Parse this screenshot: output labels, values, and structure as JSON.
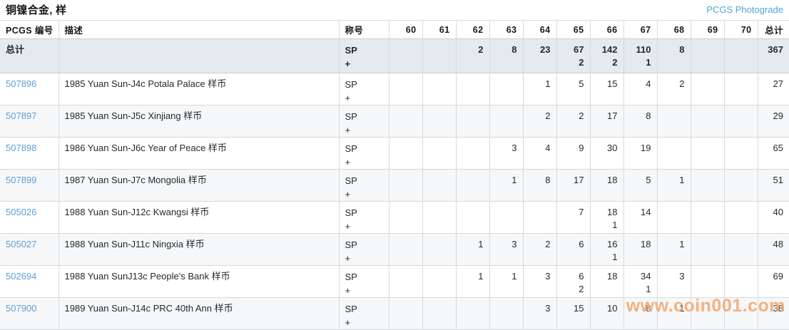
{
  "page": {
    "title": "铜镍合金, 样",
    "photograde_link": "PCGS Photograde",
    "watermark": "www.coin001.com"
  },
  "colors": {
    "link_blue": "#51a4d7",
    "id_link_blue": "#5f9fd4",
    "totals_row_bg": "#e5eaee",
    "alt_row_bg": "#f6f7f8",
    "border": "#d6dadd",
    "watermark_orange": "#f4a76f"
  },
  "table": {
    "columns": [
      "PCGS 编号",
      "描述",
      "称号",
      "60",
      "61",
      "62",
      "63",
      "64",
      "65",
      "66",
      "67",
      "68",
      "69",
      "70",
      "总计"
    ],
    "grade_keys": [
      "60",
      "61",
      "62",
      "63",
      "64",
      "65",
      "66",
      "67",
      "68",
      "69",
      "70"
    ],
    "totals": {
      "label": "总计",
      "designation": [
        "SP",
        "+"
      ],
      "grades": [
        null,
        null,
        [
          "2"
        ],
        [
          "8"
        ],
        [
          "23"
        ],
        [
          "67",
          "2"
        ],
        [
          "142",
          "2"
        ],
        [
          "110",
          "1"
        ],
        [
          "8"
        ],
        null,
        null
      ],
      "total": "367"
    },
    "rows": [
      {
        "id": "507896",
        "desc": "1985 Yuan Sun-J4c Potala Palace 样币",
        "designation": [
          "SP",
          "+"
        ],
        "grades": [
          null,
          null,
          null,
          null,
          [
            "1"
          ],
          [
            "5"
          ],
          [
            "15"
          ],
          [
            "4"
          ],
          [
            "2"
          ],
          null,
          null
        ],
        "total": "27"
      },
      {
        "id": "507897",
        "desc": "1985 Yuan Sun-J5c Xinjiang 样币",
        "designation": [
          "SP",
          "+"
        ],
        "grades": [
          null,
          null,
          null,
          null,
          [
            "2"
          ],
          [
            "2"
          ],
          [
            "17"
          ],
          [
            "8"
          ],
          null,
          null,
          null
        ],
        "total": "29"
      },
      {
        "id": "507898",
        "desc": "1986 Yuan Sun-J6c Year of Peace 样币",
        "designation": [
          "SP",
          "+"
        ],
        "grades": [
          null,
          null,
          null,
          [
            "3"
          ],
          [
            "4"
          ],
          [
            "9"
          ],
          [
            "30"
          ],
          [
            "19"
          ],
          null,
          null,
          null
        ],
        "total": "65"
      },
      {
        "id": "507899",
        "desc": "1987 Yuan Sun-J7c Mongolia 样币",
        "designation": [
          "SP",
          "+"
        ],
        "grades": [
          null,
          null,
          null,
          [
            "1"
          ],
          [
            "8"
          ],
          [
            "17"
          ],
          [
            "18"
          ],
          [
            "5"
          ],
          [
            "1"
          ],
          null,
          null
        ],
        "total": "51"
      },
      {
        "id": "505026",
        "desc": "1988 Yuan Sun-J12c Kwangsi 样币",
        "designation": [
          "SP",
          "+"
        ],
        "grades": [
          null,
          null,
          null,
          null,
          null,
          [
            "7"
          ],
          [
            "18",
            "1"
          ],
          [
            "14"
          ],
          null,
          null,
          null
        ],
        "total": "40"
      },
      {
        "id": "505027",
        "desc": "1988 Yuan Sun-J11c Ningxia 样币",
        "designation": [
          "SP",
          "+"
        ],
        "grades": [
          null,
          null,
          [
            "1"
          ],
          [
            "3"
          ],
          [
            "2"
          ],
          [
            "6"
          ],
          [
            "16",
            "1"
          ],
          [
            "18"
          ],
          [
            "1"
          ],
          null,
          null
        ],
        "total": "48"
      },
      {
        "id": "502694",
        "desc": "1988 Yuan SunJ13c People's Bank 样币",
        "designation": [
          "SP",
          "+"
        ],
        "grades": [
          null,
          null,
          [
            "1"
          ],
          [
            "1"
          ],
          [
            "3"
          ],
          [
            "6",
            "2"
          ],
          [
            "18"
          ],
          [
            "34",
            "1"
          ],
          [
            "3"
          ],
          null,
          null
        ],
        "total": "69"
      },
      {
        "id": "507900",
        "desc": "1989 Yuan Sun-J14c PRC 40th Ann 样币",
        "designation": [
          "SP",
          "+"
        ],
        "grades": [
          null,
          null,
          null,
          null,
          [
            "3"
          ],
          [
            "15"
          ],
          [
            "10"
          ],
          [
            "8"
          ],
          [
            "1"
          ],
          null,
          null
        ],
        "total": "38"
      }
    ]
  }
}
